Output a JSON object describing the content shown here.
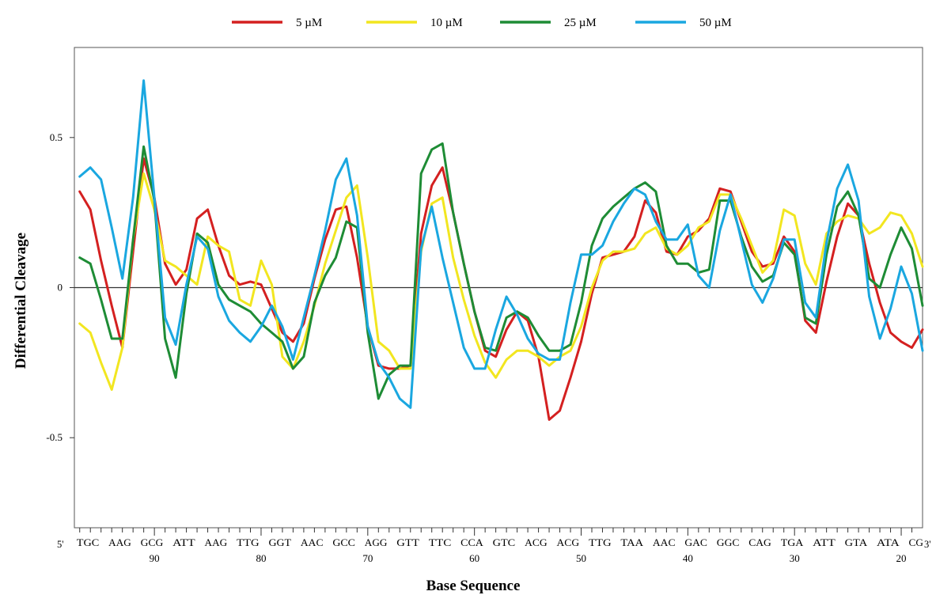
{
  "chart_data": {
    "type": "line",
    "xlabel": "Base Sequence",
    "ylabel": "Differential Cleavage",
    "xlim": [
      97.5,
      18
    ],
    "ylim": [
      -0.8,
      0.8
    ],
    "x_ticks": [
      90,
      80,
      70,
      60,
      50,
      40,
      30,
      20
    ],
    "y_ticks": [
      {
        "value": 0.5,
        "label": "0.5"
      },
      {
        "value": 0,
        "label": "0"
      },
      {
        "value": -0.5,
        "label": "-0.5"
      }
    ],
    "zero_line": true,
    "grid": false,
    "legend_position": "top-center",
    "end_labels": {
      "left": "5'",
      "right": "3'"
    },
    "sequence_groups": [
      {
        "text": "TGC",
        "x": 97
      },
      {
        "text": "AAG",
        "x": 94
      },
      {
        "text": "GCG",
        "x": 91
      },
      {
        "text": "ATT",
        "x": 88
      },
      {
        "text": "AAG",
        "x": 85
      },
      {
        "text": "TTG",
        "x": 82
      },
      {
        "text": "GGT",
        "x": 79
      },
      {
        "text": "AAC",
        "x": 76
      },
      {
        "text": "GCC",
        "x": 73
      },
      {
        "text": "AGG",
        "x": 70
      },
      {
        "text": "GTT",
        "x": 67
      },
      {
        "text": "TTC",
        "x": 64
      },
      {
        "text": "CCA",
        "x": 61
      },
      {
        "text": "GTC",
        "x": 58
      },
      {
        "text": "ACG",
        "x": 55
      },
      {
        "text": "ACG",
        "x": 52
      },
      {
        "text": "TTG",
        "x": 49
      },
      {
        "text": "TAA",
        "x": 46
      },
      {
        "text": "AAC",
        "x": 43
      },
      {
        "text": "GAC",
        "x": 40
      },
      {
        "text": "GGC",
        "x": 37
      },
      {
        "text": "CAG",
        "x": 34
      },
      {
        "text": "TGA",
        "x": 31
      },
      {
        "text": "ATT",
        "x": 28
      },
      {
        "text": "GTA",
        "x": 25
      },
      {
        "text": "ATA",
        "x": 22
      },
      {
        "text": "CG",
        "x": 19
      }
    ],
    "x": [
      97,
      96,
      95,
      94,
      93,
      92,
      91,
      90,
      89,
      88,
      87,
      86,
      85,
      84,
      83,
      82,
      81,
      80,
      79,
      78,
      77,
      76,
      75,
      74,
      73,
      72,
      71,
      70,
      69,
      68,
      67,
      66,
      65,
      64,
      63,
      62,
      61,
      60,
      59,
      58,
      57,
      56,
      55,
      54,
      53,
      52,
      51,
      50,
      49,
      48,
      47,
      46,
      45,
      44,
      43,
      42,
      41,
      40,
      39,
      38,
      37,
      36,
      35,
      34,
      33,
      32,
      31,
      30,
      29,
      28,
      27,
      26,
      25,
      24,
      23,
      22,
      21,
      20,
      19,
      18
    ],
    "series": [
      {
        "name": "5 µM",
        "color": "#d42020",
        "values": [
          0.32,
          0.26,
          0.09,
          -0.06,
          -0.2,
          0.12,
          0.43,
          0.3,
          0.08,
          0.01,
          0.06,
          0.23,
          0.26,
          0.14,
          0.04,
          0.01,
          0.02,
          0.01,
          -0.07,
          -0.15,
          -0.18,
          -0.12,
          0.03,
          0.16,
          0.26,
          0.27,
          0.1,
          -0.13,
          -0.26,
          -0.27,
          -0.27,
          -0.26,
          0.18,
          0.34,
          0.4,
          0.25,
          0.08,
          -0.08,
          -0.21,
          -0.23,
          -0.14,
          -0.08,
          -0.11,
          -0.23,
          -0.44,
          -0.41,
          -0.3,
          -0.18,
          -0.02,
          0.1,
          0.11,
          0.12,
          0.17,
          0.29,
          0.25,
          0.12,
          0.11,
          0.17,
          0.19,
          0.23,
          0.33,
          0.32,
          0.22,
          0.12,
          0.07,
          0.08,
          0.17,
          0.12,
          -0.11,
          -0.15,
          0.02,
          0.17,
          0.28,
          0.24,
          0.08,
          -0.05,
          -0.15,
          -0.18,
          -0.2,
          -0.14
        ]
      },
      {
        "name": "10 µM",
        "color": "#f2e620",
        "values": [
          -0.12,
          -0.15,
          -0.25,
          -0.34,
          -0.2,
          0.16,
          0.38,
          0.26,
          0.09,
          0.07,
          0.04,
          0.01,
          0.17,
          0.14,
          0.12,
          -0.04,
          -0.06,
          0.09,
          0.01,
          -0.23,
          -0.27,
          -0.18,
          -0.06,
          0.08,
          0.19,
          0.3,
          0.34,
          0.1,
          -0.18,
          -0.21,
          -0.27,
          -0.27,
          0.12,
          0.28,
          0.3,
          0.1,
          -0.04,
          -0.16,
          -0.25,
          -0.3,
          -0.24,
          -0.21,
          -0.21,
          -0.23,
          -0.26,
          -0.23,
          -0.21,
          -0.13,
          0.0,
          0.09,
          0.12,
          0.12,
          0.13,
          0.18,
          0.2,
          0.13,
          0.11,
          0.14,
          0.2,
          0.22,
          0.31,
          0.31,
          0.23,
          0.14,
          0.05,
          0.09,
          0.26,
          0.24,
          0.08,
          0.01,
          0.18,
          0.22,
          0.24,
          0.23,
          0.18,
          0.2,
          0.25,
          0.24,
          0.18,
          0.07
        ]
      },
      {
        "name": "25 µM",
        "color": "#1e8c35",
        "values": [
          0.1,
          0.08,
          -0.04,
          -0.17,
          -0.17,
          0.16,
          0.47,
          0.29,
          -0.17,
          -0.3,
          -0.02,
          0.18,
          0.15,
          0.01,
          -0.04,
          -0.06,
          -0.08,
          -0.12,
          -0.15,
          -0.18,
          -0.27,
          -0.23,
          -0.05,
          0.04,
          0.1,
          0.22,
          0.2,
          -0.15,
          -0.37,
          -0.29,
          -0.26,
          -0.26,
          0.38,
          0.46,
          0.48,
          0.25,
          0.08,
          -0.08,
          -0.2,
          -0.21,
          -0.1,
          -0.08,
          -0.1,
          -0.16,
          -0.21,
          -0.21,
          -0.19,
          -0.05,
          0.14,
          0.23,
          0.27,
          0.3,
          0.33,
          0.35,
          0.32,
          0.14,
          0.08,
          0.08,
          0.05,
          0.06,
          0.29,
          0.29,
          0.17,
          0.07,
          0.02,
          0.04,
          0.15,
          0.11,
          -0.1,
          -0.12,
          0.11,
          0.27,
          0.32,
          0.24,
          0.03,
          0.0,
          0.11,
          0.2,
          0.13,
          -0.06
        ]
      },
      {
        "name": "50 µM",
        "color": "#1aa7e0",
        "values": [
          0.37,
          0.4,
          0.36,
          0.2,
          0.03,
          0.3,
          0.69,
          0.3,
          -0.1,
          -0.19,
          0.01,
          0.17,
          0.13,
          -0.03,
          -0.11,
          -0.15,
          -0.18,
          -0.13,
          -0.06,
          -0.13,
          -0.24,
          -0.1,
          0.04,
          0.19,
          0.36,
          0.43,
          0.24,
          -0.13,
          -0.25,
          -0.3,
          -0.37,
          -0.4,
          0.13,
          0.27,
          0.1,
          -0.05,
          -0.2,
          -0.27,
          -0.27,
          -0.14,
          -0.03,
          -0.09,
          -0.17,
          -0.22,
          -0.24,
          -0.24,
          -0.05,
          0.11,
          0.11,
          0.14,
          0.22,
          0.28,
          0.33,
          0.31,
          0.22,
          0.16,
          0.16,
          0.21,
          0.04,
          0.0,
          0.19,
          0.31,
          0.16,
          0.01,
          -0.05,
          0.03,
          0.16,
          0.16,
          -0.05,
          -0.1,
          0.15,
          0.33,
          0.41,
          0.29,
          -0.03,
          -0.17,
          -0.07,
          0.07,
          -0.02,
          -0.21
        ]
      }
    ]
  }
}
